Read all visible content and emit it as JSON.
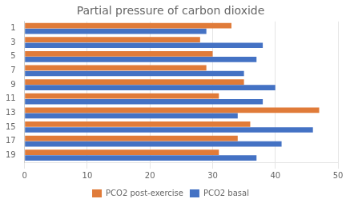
{
  "chart_data": {
    "type": "bar",
    "orientation": "horizontal",
    "title": "Partial pressure of carbon dioxide",
    "categories": [
      1,
      3,
      5,
      7,
      9,
      11,
      13,
      15,
      17,
      19
    ],
    "series": [
      {
        "name": "PCO2 post-exercise",
        "color": "#E07B39",
        "values": [
          33,
          28,
          30,
          29,
          35,
          31,
          47,
          36,
          34,
          31
        ]
      },
      {
        "name": "PCO2 basal",
        "color": "#4472C4",
        "values": [
          29,
          38,
          37,
          35,
          40,
          38,
          34,
          46,
          41,
          37
        ]
      }
    ],
    "xlim": [
      0,
      50
    ],
    "xticks": [
      0,
      10,
      20,
      30,
      40,
      50
    ],
    "grid": true,
    "legend": "bottom"
  }
}
